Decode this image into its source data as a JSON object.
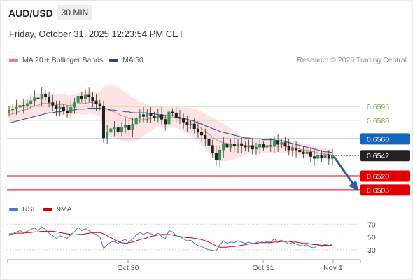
{
  "header": {
    "symbol": "AUD/USD",
    "timeframe": "30 MIN",
    "datetime": "Friday, October 31, 2025 12:23:54 PM CET",
    "copyright": "Research © 2025 Trading Central"
  },
  "colors": {
    "bollinger": "#f08080",
    "ma50": "#1f4e8c",
    "resistance": "#a9cf7f",
    "pivot": "#1565c0",
    "support": "#e00000",
    "current": "#222222",
    "arrow": "#2a5fa8",
    "rsi": "#4a78d0",
    "rsi_ma": "#d00000"
  },
  "legend": [
    {
      "label": "MA 20 + Bollinger Bands",
      "color": "#f08080"
    },
    {
      "label": "MA 50",
      "color": "#1f4e8c"
    }
  ],
  "rsi_legend": [
    {
      "label": "RSI",
      "color": "#4a78d0"
    },
    {
      "label": "9MA",
      "color": "#d00000"
    }
  ],
  "chart_data": [
    {
      "type": "candlestick",
      "y_range": [
        0.6497,
        0.6628
      ],
      "x_ticks": [
        "Oct 30",
        "Oct 31",
        "Nov 1"
      ],
      "levels": [
        {
          "name": "resistance-2",
          "value": "0.6595",
          "kind": "resistance"
        },
        {
          "name": "resistance-1",
          "value": "0.6580",
          "kind": "resistance"
        },
        {
          "name": "pivot",
          "value": "0.6560",
          "kind": "pivot"
        },
        {
          "name": "current-price",
          "value": "0.6542",
          "kind": "current"
        },
        {
          "name": "support-1",
          "value": "0.6520",
          "kind": "support"
        },
        {
          "name": "support-2",
          "value": "0.6505",
          "kind": "support"
        }
      ],
      "closes": [
        0.6591,
        0.6592,
        0.6594,
        0.6596,
        0.6595,
        0.6598,
        0.6601,
        0.6604,
        0.6603,
        0.6608,
        0.6605,
        0.6599,
        0.6596,
        0.6592,
        0.6594,
        0.659,
        0.6588,
        0.6594,
        0.6599,
        0.6606,
        0.6603,
        0.6607,
        0.6605,
        0.6601,
        0.6598,
        0.6595,
        0.6561,
        0.6567,
        0.6571,
        0.6572,
        0.6568,
        0.6572,
        0.6575,
        0.657,
        0.6576,
        0.6582,
        0.6586,
        0.6584,
        0.6587,
        0.6585,
        0.6583,
        0.6586,
        0.6581,
        0.6576,
        0.6589,
        0.6588,
        0.6583,
        0.6582,
        0.6578,
        0.6575,
        0.6576,
        0.6571,
        0.6567,
        0.6564,
        0.656,
        0.6553,
        0.6545,
        0.6537,
        0.6548,
        0.6555,
        0.6551,
        0.6554,
        0.6552,
        0.6555,
        0.6553,
        0.6551,
        0.6553,
        0.6549,
        0.6551,
        0.6554,
        0.6551,
        0.6553,
        0.6552,
        0.6558,
        0.6554,
        0.6556,
        0.6552,
        0.6548,
        0.655,
        0.6548,
        0.6546,
        0.6544,
        0.6546,
        0.6541,
        0.6539,
        0.6542,
        0.654,
        0.6543,
        0.6539,
        0.6542
      ],
      "ma20": [
        0.6586,
        0.6587,
        0.6588,
        0.659,
        0.6591,
        0.6592,
        0.6594,
        0.6595,
        0.6596,
        0.6598,
        0.6598,
        0.6598,
        0.6598,
        0.6597,
        0.6597,
        0.6597,
        0.6596,
        0.6596,
        0.6597,
        0.6598,
        0.6598,
        0.6598,
        0.6599,
        0.6599,
        0.6598,
        0.6597,
        0.6594,
        0.6592,
        0.659,
        0.6589,
        0.6587,
        0.6585,
        0.6584,
        0.6582,
        0.6581,
        0.658,
        0.658,
        0.6581,
        0.6581,
        0.6582,
        0.6583,
        0.6584,
        0.6584,
        0.6583,
        0.6583,
        0.6583,
        0.6583,
        0.6582,
        0.6581,
        0.658,
        0.6578,
        0.6576,
        0.6574,
        0.6571,
        0.6568,
        0.6565,
        0.6562,
        0.6559,
        0.6557,
        0.6556,
        0.6555,
        0.6554,
        0.6553,
        0.6553,
        0.6552,
        0.6552,
        0.6552,
        0.6552,
        0.6552,
        0.6552,
        0.6552,
        0.6552,
        0.6552,
        0.6552,
        0.6552,
        0.6552,
        0.6552,
        0.6551,
        0.6551,
        0.655,
        0.6549,
        0.6548,
        0.6548,
        0.6547,
        0.6546,
        0.6545,
        0.6544,
        0.6544,
        0.6543,
        0.6543
      ],
      "bb_width": [
        0.0008,
        0.0008,
        0.0009,
        0.001,
        0.001,
        0.0011,
        0.0011,
        0.0012,
        0.0012,
        0.0012,
        0.0012,
        0.0011,
        0.0011,
        0.0011,
        0.0011,
        0.0011,
        0.0011,
        0.0011,
        0.0011,
        0.0011,
        0.0012,
        0.0012,
        0.0012,
        0.0012,
        0.0012,
        0.0013,
        0.0022,
        0.0026,
        0.0028,
        0.0028,
        0.0028,
        0.0027,
        0.0026,
        0.0025,
        0.0023,
        0.0022,
        0.002,
        0.0018,
        0.0016,
        0.0014,
        0.0012,
        0.0011,
        0.0011,
        0.0011,
        0.0011,
        0.0011,
        0.0011,
        0.0012,
        0.0013,
        0.0014,
        0.0015,
        0.0016,
        0.0017,
        0.0018,
        0.0019,
        0.002,
        0.0021,
        0.0022,
        0.0021,
        0.002,
        0.0019,
        0.0017,
        0.0015,
        0.0013,
        0.0011,
        0.0009,
        0.0008,
        0.0007,
        0.0007,
        0.0007,
        0.0007,
        0.0007,
        0.0007,
        0.0007,
        0.0007,
        0.0007,
        0.0007,
        0.0007,
        0.0007,
        0.0007,
        0.0007,
        0.0007,
        0.0007,
        0.0007,
        0.0006,
        0.0006,
        0.0006,
        0.0006,
        0.0006,
        0.0006
      ],
      "ma50": [
        0.6577,
        0.6578,
        0.6579,
        0.658,
        0.6581,
        0.6582,
        0.6583,
        0.6584,
        0.6585,
        0.6586,
        0.6587,
        0.6588,
        0.6588,
        0.6589,
        0.6589,
        0.659,
        0.659,
        0.6591,
        0.6591,
        0.6592,
        0.6592,
        0.6592,
        0.6593,
        0.6593,
        0.6593,
        0.6593,
        0.6592,
        0.6592,
        0.6591,
        0.6591,
        0.659,
        0.659,
        0.6589,
        0.6589,
        0.6588,
        0.6588,
        0.6588,
        0.6588,
        0.6588,
        0.6587,
        0.6587,
        0.6586,
        0.6586,
        0.6585,
        0.6585,
        0.6585,
        0.6584,
        0.6583,
        0.6582,
        0.6581,
        0.658,
        0.6579,
        0.6577,
        0.6576,
        0.6574,
        0.6573,
        0.6571,
        0.657,
        0.6568,
        0.6567,
        0.6566,
        0.6565,
        0.6564,
        0.6563,
        0.6562,
        0.6561,
        0.6561,
        0.656,
        0.656,
        0.656,
        0.6559,
        0.6559,
        0.6559,
        0.6559,
        0.6558,
        0.6558,
        0.6557,
        0.6556,
        0.6555,
        0.6554,
        0.6553,
        0.6552,
        0.6551,
        0.655,
        0.6549,
        0.6548,
        0.6547,
        0.6546,
        0.6546,
        0.6545
      ],
      "forecast_arrow": "down"
    },
    {
      "type": "line",
      "name": "RSI",
      "y_range": [
        20,
        78
      ],
      "y_ticks": [
        "70",
        "50",
        "30"
      ],
      "rsi": [
        52,
        55,
        58,
        60,
        57,
        59,
        62,
        64,
        60,
        66,
        62,
        56,
        52,
        48,
        52,
        50,
        48,
        54,
        58,
        65,
        60,
        63,
        60,
        56,
        54,
        50,
        32,
        38,
        42,
        43,
        40,
        44,
        46,
        42,
        47,
        53,
        57,
        54,
        57,
        55,
        53,
        56,
        51,
        47,
        60,
        58,
        52,
        51,
        47,
        44,
        45,
        40,
        37,
        35,
        32,
        30,
        29,
        28,
        38,
        44,
        40,
        42,
        41,
        44,
        42,
        40,
        42,
        39,
        41,
        44,
        41,
        43,
        42,
        47,
        43,
        45,
        42,
        39,
        41,
        39,
        37,
        36,
        38,
        34,
        33,
        37,
        35,
        39,
        36,
        40
      ],
      "rsi_ma": [
        55,
        55,
        56,
        56,
        56,
        57,
        57,
        58,
        58,
        59,
        59,
        59,
        59,
        58,
        57,
        56,
        55,
        54,
        53,
        54,
        54,
        55,
        56,
        57,
        57,
        57,
        55,
        52,
        49,
        46,
        43,
        41,
        40,
        41,
        42,
        44,
        46,
        47,
        49,
        51,
        52,
        53,
        54,
        54,
        54,
        53,
        52,
        51,
        50,
        49,
        49,
        48,
        47,
        46,
        44,
        42,
        39,
        36,
        34,
        34,
        34,
        35,
        35,
        36,
        37,
        38,
        39,
        40,
        40,
        41,
        41,
        41,
        41,
        42,
        42,
        43,
        43,
        43,
        42,
        42,
        41,
        40,
        40,
        39,
        38,
        38,
        37,
        37,
        37,
        37
      ]
    }
  ]
}
